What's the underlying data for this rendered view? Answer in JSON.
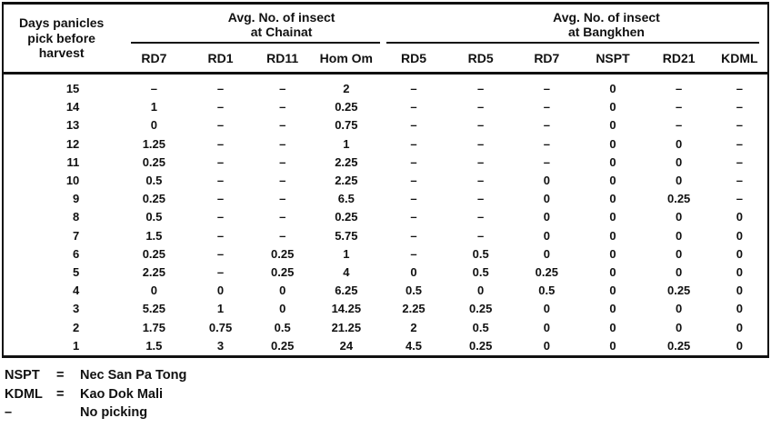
{
  "page": {
    "background": "#ffffff",
    "ink": "#111111"
  },
  "table": {
    "row_axis": {
      "line1": "Days panicles",
      "line2": "pick before",
      "line3": "harvest"
    },
    "groups": [
      {
        "title_line1": "Avg. No. of insect",
        "title_line2": "at Chainat"
      },
      {
        "title_line1": "Avg. No. of insect",
        "title_line2": "at Bangkhen"
      }
    ],
    "columns": [
      "RD7",
      "RD1",
      "RD11",
      "Hom Om",
      "RD5",
      "RD5",
      "RD7",
      "NSPT",
      "RD21",
      "KDML"
    ],
    "rows": [
      {
        "days": "15",
        "values": [
          "–",
          "–",
          "–",
          "2",
          "–",
          "–",
          "–",
          "0",
          "–",
          "–"
        ]
      },
      {
        "days": "14",
        "values": [
          "1",
          "–",
          "–",
          "0.25",
          "–",
          "–",
          "–",
          "0",
          "–",
          "–"
        ]
      },
      {
        "days": "13",
        "values": [
          "0",
          "–",
          "–",
          "0.75",
          "–",
          "–",
          "–",
          "0",
          "–",
          "–"
        ]
      },
      {
        "days": "12",
        "values": [
          "1.25",
          "–",
          "–",
          "1",
          "–",
          "–",
          "–",
          "0",
          "0",
          "–"
        ]
      },
      {
        "days": "11",
        "values": [
          "0.25",
          "–",
          "–",
          "2.25",
          "–",
          "–",
          "–",
          "0",
          "0",
          "–"
        ]
      },
      {
        "days": "10",
        "values": [
          "0.5",
          "–",
          "–",
          "2.25",
          "–",
          "–",
          "0",
          "0",
          "0",
          "–"
        ]
      },
      {
        "days": "9",
        "values": [
          "0.25",
          "–",
          "–",
          "6.5",
          "–",
          "–",
          "0",
          "0",
          "0.25",
          "–"
        ]
      },
      {
        "days": "8",
        "values": [
          "0.5",
          "–",
          "–",
          "0.25",
          "–",
          "–",
          "0",
          "0",
          "0",
          "0"
        ]
      },
      {
        "days": "7",
        "values": [
          "1.5",
          "–",
          "–",
          "5.75",
          "–",
          "–",
          "0",
          "0",
          "0",
          "0"
        ]
      },
      {
        "days": "6",
        "values": [
          "0.25",
          "–",
          "0.25",
          "1",
          "–",
          "0.5",
          "0",
          "0",
          "0",
          "0"
        ]
      },
      {
        "days": "5",
        "values": [
          "2.25",
          "–",
          "0.25",
          "4",
          "0",
          "0.5",
          "0.25",
          "0",
          "0",
          "0"
        ]
      },
      {
        "days": "4",
        "values": [
          "0",
          "0",
          "0",
          "6.25",
          "0.5",
          "0",
          "0.5",
          "0",
          "0.25",
          "0"
        ]
      },
      {
        "days": "3",
        "values": [
          "5.25",
          "1",
          "0",
          "14.25",
          "2.25",
          "0.25",
          "0",
          "0",
          "0",
          "0"
        ]
      },
      {
        "days": "2",
        "values": [
          "1.75",
          "0.75",
          "0.5",
          "21.25",
          "2",
          "0.5",
          "0",
          "0",
          "0",
          "0"
        ]
      },
      {
        "days": "1",
        "values": [
          "1.5",
          "3",
          "0.25",
          "24",
          "4.5",
          "0.25",
          "0",
          "0",
          "0.25",
          "0"
        ]
      }
    ]
  },
  "footnotes": [
    {
      "term": "NSPT",
      "eq": "=",
      "definition": "Nec San Pa Tong"
    },
    {
      "term": "KDML",
      "eq": "=",
      "definition": "Kao Dok Mali"
    },
    {
      "term": "–",
      "eq": "",
      "definition": "No picking"
    }
  ]
}
